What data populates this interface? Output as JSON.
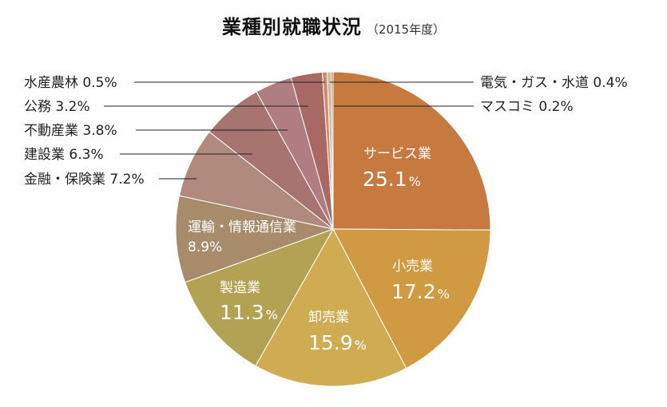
{
  "chart_data": {
    "type": "pie",
    "title": "業種別就職状況",
    "subtitle": "（2015年度）",
    "start_angle": "top",
    "direction": "clockwise",
    "slices": [
      {
        "label": "サービス業",
        "value": 25.1,
        "value_text": "25.1",
        "unit": "%",
        "color": "#c67a40",
        "label_position": "inside"
      },
      {
        "label": "小売業",
        "value": 17.2,
        "value_text": "17.2",
        "unit": "%",
        "color": "#d09a42",
        "label_position": "inside"
      },
      {
        "label": "卸売業",
        "value": 15.9,
        "value_text": "15.9",
        "unit": "%",
        "color": "#cfac52",
        "label_position": "inside"
      },
      {
        "label": "製造業",
        "value": 11.3,
        "value_text": "11.3",
        "unit": "%",
        "color": "#b3a253",
        "label_position": "inside"
      },
      {
        "label": "運輸・情報通信業",
        "value": 8.9,
        "value_text": "8.9%",
        "unit": "%",
        "color": "#a88b6b",
        "label_position": "inside"
      },
      {
        "label": "金融・保険業",
        "value": 7.2,
        "value_text": "金融・保険業 7.2%",
        "unit": "%",
        "color": "#b08a7c",
        "label_position": "left"
      },
      {
        "label": "建設業",
        "value": 6.3,
        "value_text": "建設業 6.3%",
        "unit": "%",
        "color": "#a87470",
        "label_position": "left"
      },
      {
        "label": "不動産業",
        "value": 3.8,
        "value_text": "不動産業 3.8%",
        "unit": "%",
        "color": "#b07d82",
        "label_position": "left"
      },
      {
        "label": "公務",
        "value": 3.2,
        "value_text": "公務 3.2%",
        "unit": "%",
        "color": "#a86864",
        "label_position": "left"
      },
      {
        "label": "水産農林",
        "value": 0.5,
        "value_text": "水産農林 0.5%",
        "unit": "%",
        "color": "#d08a70",
        "label_position": "left"
      },
      {
        "label": "電気・ガス・水道",
        "value": 0.4,
        "value_text": "電気・ガス・水道 0.4%",
        "unit": "%",
        "color": "#d4b49a",
        "label_position": "right"
      },
      {
        "label": "マスコミ",
        "value": 0.2,
        "value_text": "マスコミ 0.2%",
        "unit": "%",
        "color": "#a89070",
        "label_position": "right"
      }
    ]
  }
}
